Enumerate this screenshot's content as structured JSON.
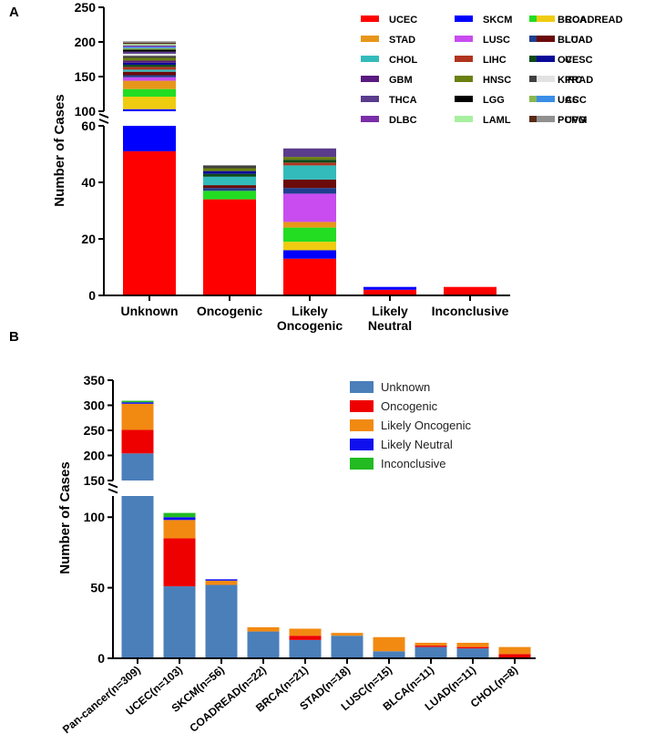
{
  "chart_data": [
    {
      "panel": "A",
      "type": "bar",
      "stacked": true,
      "broken_axis": true,
      "ylabel": "Number of Cases",
      "ylim_lower": [
        0,
        60
      ],
      "ylim_upper": [
        100,
        250
      ],
      "yticks_lower": [
        "0",
        "20",
        "40",
        "60"
      ],
      "yticks_upper": [
        "100",
        "150",
        "200",
        "250"
      ],
      "categories": [
        "Unknown",
        "Oncogenic",
        "Likely Oncogenic",
        "Likely Neutral",
        "Inconclusive"
      ],
      "category_lines": [
        [
          "Unknown"
        ],
        [
          "Oncogenic"
        ],
        [
          "Likely",
          "Oncogenic"
        ],
        [
          "Likely",
          "Neutral"
        ],
        [
          "Inconclusive"
        ]
      ],
      "legend": [
        "UCEC",
        "SKCM",
        "BRCA",
        "COADREAD",
        "STAD",
        "LUSC",
        "BLCA",
        "LUAD",
        "CHOL",
        "LIHC",
        "OV",
        "CESC",
        "GBM",
        "HNSC",
        "KIRC",
        "PRAD",
        "THCA",
        "LGG",
        "UCS",
        "ACC",
        "DLBC",
        "LAML",
        "PCPG",
        "UVM"
      ],
      "colors": {
        "UCEC": "#ff0000",
        "SKCM": "#0000ff",
        "BRCA": "#22dd22",
        "COADREAD": "#f0cc10",
        "STAD": "#e8961a",
        "LUSC": "#c84cf0",
        "BLCA": "#1f3f8f",
        "LUAD": "#6b0a0a",
        "CHOL": "#33bbbb",
        "LIHC": "#b0341e",
        "OV": "#0c4a1a",
        "CESC": "#0a0a99",
        "GBM": "#5a1a80",
        "HNSC": "#6a8010",
        "KIRC": "#404040",
        "PRAD": "#e2e2e2",
        "THCA": "#5a3c8c",
        "LGG": "#000000",
        "UCS": "#88b850",
        "ACC": "#3a8ee6",
        "DLBC": "#7a2ea8",
        "LAML": "#a8f0a0",
        "PCPG": "#5a2a18",
        "UVM": "#909090"
      },
      "series": [
        {
          "name": "UCEC",
          "values": [
            51,
            34,
            13,
            2,
            3
          ]
        },
        {
          "name": "SKCM",
          "values": [
            52,
            0,
            3,
            1,
            0
          ]
        },
        {
          "name": "COADREAD",
          "values": [
            18,
            0,
            3,
            0,
            0
          ]
        },
        {
          "name": "BRCA",
          "values": [
            11,
            3,
            5,
            0,
            0
          ]
        },
        {
          "name": "STAD",
          "values": [
            12,
            0,
            2,
            0,
            0
          ]
        },
        {
          "name": "LUSC",
          "values": [
            5,
            0,
            10,
            0,
            0
          ]
        },
        {
          "name": "BLCA",
          "values": [
            3,
            1,
            2,
            0,
            0
          ]
        },
        {
          "name": "LUAD",
          "values": [
            5,
            1,
            3,
            0,
            0
          ]
        },
        {
          "name": "CHOL",
          "values": [
            3,
            3,
            5,
            0,
            0
          ]
        },
        {
          "name": "LIHC",
          "values": [
            4,
            0,
            1,
            0,
            0
          ]
        },
        {
          "name": "OV",
          "values": [
            3,
            1,
            1,
            0,
            0
          ]
        },
        {
          "name": "CESC",
          "values": [
            3,
            1,
            0,
            0,
            0
          ]
        },
        {
          "name": "GBM",
          "values": [
            3,
            0,
            0,
            0,
            0
          ]
        },
        {
          "name": "HNSC",
          "values": [
            4,
            1,
            1,
            0,
            0
          ]
        },
        {
          "name": "KIRC",
          "values": [
            3,
            1,
            0,
            0,
            0
          ]
        },
        {
          "name": "PRAD",
          "values": [
            3,
            0,
            0,
            0,
            0
          ]
        },
        {
          "name": "THCA",
          "values": [
            3,
            0,
            3,
            0,
            0
          ]
        },
        {
          "name": "LGG",
          "values": [
            3,
            0,
            0,
            0,
            0
          ]
        },
        {
          "name": "UCS",
          "values": [
            2,
            0,
            0,
            0,
            0
          ]
        },
        {
          "name": "ACC",
          "values": [
            2,
            0,
            0,
            0,
            0
          ]
        },
        {
          "name": "DLBC",
          "values": [
            2,
            0,
            0,
            0,
            0
          ]
        },
        {
          "name": "LAML",
          "values": [
            2,
            0,
            0,
            0,
            0
          ]
        },
        {
          "name": "PCPG",
          "values": [
            2,
            0,
            0,
            0,
            0
          ]
        },
        {
          "name": "UVM",
          "values": [
            2,
            0,
            0,
            0,
            0
          ]
        }
      ]
    },
    {
      "panel": "B",
      "type": "bar",
      "stacked": true,
      "broken_axis": true,
      "ylabel": "Number of Cases",
      "ylim_lower": [
        0,
        115
      ],
      "ylim_upper": [
        150,
        350
      ],
      "yticks_lower": [
        "0",
        "50",
        "100"
      ],
      "yticks_upper": [
        "150",
        "200",
        "250",
        "300",
        "350"
      ],
      "categories": [
        "Pan-cancer(n=309)",
        "UCEC(n=103)",
        "SKCM(n=56)",
        "COADREAD(n=22)",
        "BRCA(n=21)",
        "STAD(n=18)",
        "LUSC(n=15)",
        "BLCA(n=11)",
        "LUAD(n=11)",
        "CHOL(n=8)"
      ],
      "legend": [
        "Unknown",
        "Oncogenic",
        "Likely Oncogenic",
        "Likely Neutral",
        "Inconclusive"
      ],
      "colors": {
        "Unknown": "#4a7fba",
        "Oncogenic": "#ee0000",
        "Likely Oncogenic": "#f28a12",
        "Likely Neutral": "#1010ee",
        "Inconclusive": "#22bb22"
      },
      "series": [
        {
          "name": "Unknown",
          "values": [
            204,
            51,
            52,
            19,
            13,
            16,
            5,
            8,
            7,
            0
          ]
        },
        {
          "name": "Oncogenic",
          "values": [
            47,
            34,
            0,
            0,
            3,
            0,
            0,
            1,
            1,
            3
          ]
        },
        {
          "name": "Likely Oncogenic",
          "values": [
            52,
            13,
            3,
            3,
            5,
            2,
            10,
            2,
            3,
            5
          ]
        },
        {
          "name": "Likely Neutral",
          "values": [
            3,
            2,
            1,
            0,
            0,
            0,
            0,
            0,
            0,
            0
          ]
        },
        {
          "name": "Inconclusive",
          "values": [
            3,
            3,
            0,
            0,
            0,
            0,
            0,
            0,
            0,
            0
          ]
        }
      ]
    }
  ]
}
